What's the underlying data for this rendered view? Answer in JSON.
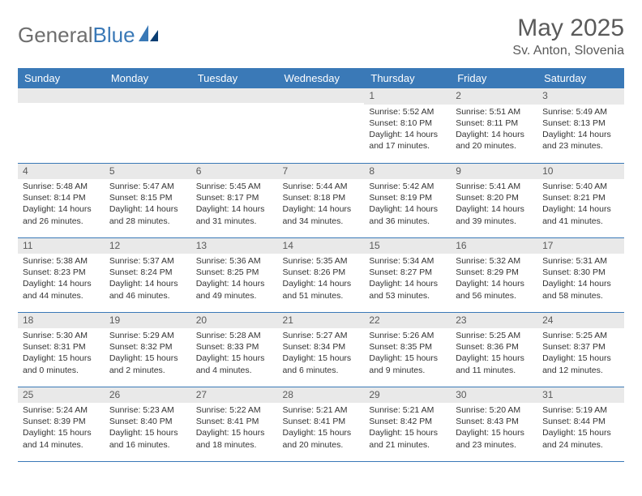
{
  "brand": {
    "part1": "General",
    "part2": "Blue"
  },
  "title": "May 2025",
  "location": "Sv. Anton, Slovenia",
  "colors": {
    "header_bg": "#3a79b7",
    "header_text": "#ffffff",
    "daynum_bg": "#e9e9e9",
    "text": "#333333",
    "border": "#3a79b7",
    "logo_gray": "#6e6e6e",
    "logo_blue": "#3a79b7"
  },
  "weekdays": [
    "Sunday",
    "Monday",
    "Tuesday",
    "Wednesday",
    "Thursday",
    "Friday",
    "Saturday"
  ],
  "weeks": [
    [
      null,
      null,
      null,
      null,
      {
        "n": "1",
        "sunrise": "Sunrise: 5:52 AM",
        "sunset": "Sunset: 8:10 PM",
        "day1": "Daylight: 14 hours",
        "day2": "and 17 minutes."
      },
      {
        "n": "2",
        "sunrise": "Sunrise: 5:51 AM",
        "sunset": "Sunset: 8:11 PM",
        "day1": "Daylight: 14 hours",
        "day2": "and 20 minutes."
      },
      {
        "n": "3",
        "sunrise": "Sunrise: 5:49 AM",
        "sunset": "Sunset: 8:13 PM",
        "day1": "Daylight: 14 hours",
        "day2": "and 23 minutes."
      }
    ],
    [
      {
        "n": "4",
        "sunrise": "Sunrise: 5:48 AM",
        "sunset": "Sunset: 8:14 PM",
        "day1": "Daylight: 14 hours",
        "day2": "and 26 minutes."
      },
      {
        "n": "5",
        "sunrise": "Sunrise: 5:47 AM",
        "sunset": "Sunset: 8:15 PM",
        "day1": "Daylight: 14 hours",
        "day2": "and 28 minutes."
      },
      {
        "n": "6",
        "sunrise": "Sunrise: 5:45 AM",
        "sunset": "Sunset: 8:17 PM",
        "day1": "Daylight: 14 hours",
        "day2": "and 31 minutes."
      },
      {
        "n": "7",
        "sunrise": "Sunrise: 5:44 AM",
        "sunset": "Sunset: 8:18 PM",
        "day1": "Daylight: 14 hours",
        "day2": "and 34 minutes."
      },
      {
        "n": "8",
        "sunrise": "Sunrise: 5:42 AM",
        "sunset": "Sunset: 8:19 PM",
        "day1": "Daylight: 14 hours",
        "day2": "and 36 minutes."
      },
      {
        "n": "9",
        "sunrise": "Sunrise: 5:41 AM",
        "sunset": "Sunset: 8:20 PM",
        "day1": "Daylight: 14 hours",
        "day2": "and 39 minutes."
      },
      {
        "n": "10",
        "sunrise": "Sunrise: 5:40 AM",
        "sunset": "Sunset: 8:21 PM",
        "day1": "Daylight: 14 hours",
        "day2": "and 41 minutes."
      }
    ],
    [
      {
        "n": "11",
        "sunrise": "Sunrise: 5:38 AM",
        "sunset": "Sunset: 8:23 PM",
        "day1": "Daylight: 14 hours",
        "day2": "and 44 minutes."
      },
      {
        "n": "12",
        "sunrise": "Sunrise: 5:37 AM",
        "sunset": "Sunset: 8:24 PM",
        "day1": "Daylight: 14 hours",
        "day2": "and 46 minutes."
      },
      {
        "n": "13",
        "sunrise": "Sunrise: 5:36 AM",
        "sunset": "Sunset: 8:25 PM",
        "day1": "Daylight: 14 hours",
        "day2": "and 49 minutes."
      },
      {
        "n": "14",
        "sunrise": "Sunrise: 5:35 AM",
        "sunset": "Sunset: 8:26 PM",
        "day1": "Daylight: 14 hours",
        "day2": "and 51 minutes."
      },
      {
        "n": "15",
        "sunrise": "Sunrise: 5:34 AM",
        "sunset": "Sunset: 8:27 PM",
        "day1": "Daylight: 14 hours",
        "day2": "and 53 minutes."
      },
      {
        "n": "16",
        "sunrise": "Sunrise: 5:32 AM",
        "sunset": "Sunset: 8:29 PM",
        "day1": "Daylight: 14 hours",
        "day2": "and 56 minutes."
      },
      {
        "n": "17",
        "sunrise": "Sunrise: 5:31 AM",
        "sunset": "Sunset: 8:30 PM",
        "day1": "Daylight: 14 hours",
        "day2": "and 58 minutes."
      }
    ],
    [
      {
        "n": "18",
        "sunrise": "Sunrise: 5:30 AM",
        "sunset": "Sunset: 8:31 PM",
        "day1": "Daylight: 15 hours",
        "day2": "and 0 minutes."
      },
      {
        "n": "19",
        "sunrise": "Sunrise: 5:29 AM",
        "sunset": "Sunset: 8:32 PM",
        "day1": "Daylight: 15 hours",
        "day2": "and 2 minutes."
      },
      {
        "n": "20",
        "sunrise": "Sunrise: 5:28 AM",
        "sunset": "Sunset: 8:33 PM",
        "day1": "Daylight: 15 hours",
        "day2": "and 4 minutes."
      },
      {
        "n": "21",
        "sunrise": "Sunrise: 5:27 AM",
        "sunset": "Sunset: 8:34 PM",
        "day1": "Daylight: 15 hours",
        "day2": "and 6 minutes."
      },
      {
        "n": "22",
        "sunrise": "Sunrise: 5:26 AM",
        "sunset": "Sunset: 8:35 PM",
        "day1": "Daylight: 15 hours",
        "day2": "and 9 minutes."
      },
      {
        "n": "23",
        "sunrise": "Sunrise: 5:25 AM",
        "sunset": "Sunset: 8:36 PM",
        "day1": "Daylight: 15 hours",
        "day2": "and 11 minutes."
      },
      {
        "n": "24",
        "sunrise": "Sunrise: 5:25 AM",
        "sunset": "Sunset: 8:37 PM",
        "day1": "Daylight: 15 hours",
        "day2": "and 12 minutes."
      }
    ],
    [
      {
        "n": "25",
        "sunrise": "Sunrise: 5:24 AM",
        "sunset": "Sunset: 8:39 PM",
        "day1": "Daylight: 15 hours",
        "day2": "and 14 minutes."
      },
      {
        "n": "26",
        "sunrise": "Sunrise: 5:23 AM",
        "sunset": "Sunset: 8:40 PM",
        "day1": "Daylight: 15 hours",
        "day2": "and 16 minutes."
      },
      {
        "n": "27",
        "sunrise": "Sunrise: 5:22 AM",
        "sunset": "Sunset: 8:41 PM",
        "day1": "Daylight: 15 hours",
        "day2": "and 18 minutes."
      },
      {
        "n": "28",
        "sunrise": "Sunrise: 5:21 AM",
        "sunset": "Sunset: 8:41 PM",
        "day1": "Daylight: 15 hours",
        "day2": "and 20 minutes."
      },
      {
        "n": "29",
        "sunrise": "Sunrise: 5:21 AM",
        "sunset": "Sunset: 8:42 PM",
        "day1": "Daylight: 15 hours",
        "day2": "and 21 minutes."
      },
      {
        "n": "30",
        "sunrise": "Sunrise: 5:20 AM",
        "sunset": "Sunset: 8:43 PM",
        "day1": "Daylight: 15 hours",
        "day2": "and 23 minutes."
      },
      {
        "n": "31",
        "sunrise": "Sunrise: 5:19 AM",
        "sunset": "Sunset: 8:44 PM",
        "day1": "Daylight: 15 hours",
        "day2": "and 24 minutes."
      }
    ]
  ]
}
